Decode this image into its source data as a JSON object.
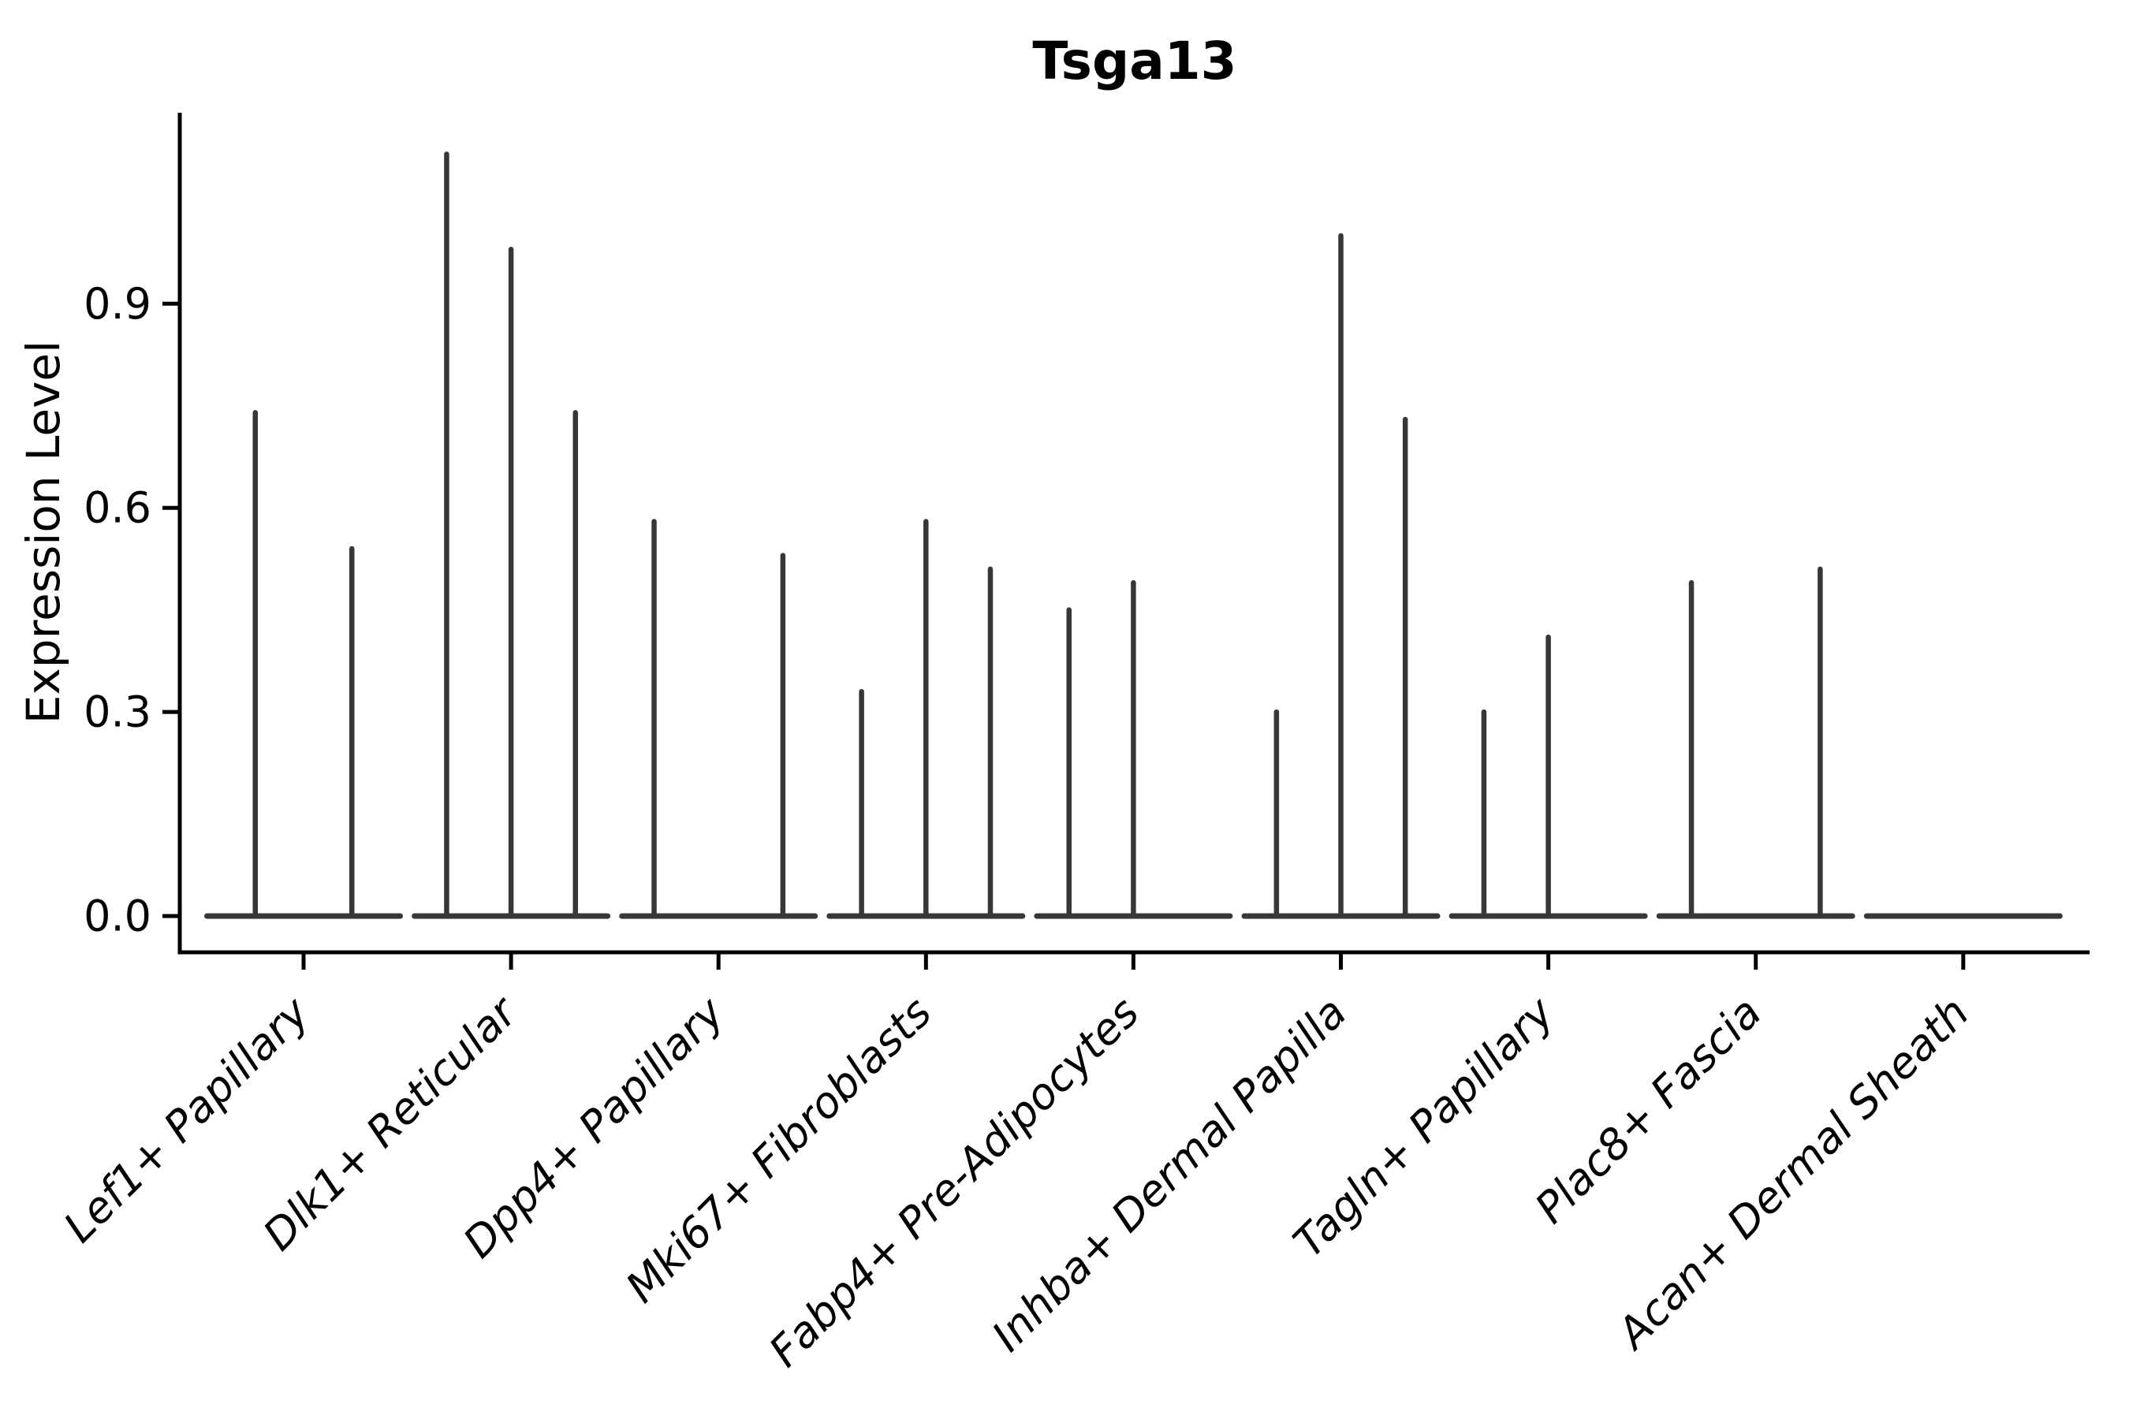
{
  "chart_data": {
    "type": "violin",
    "title": "Tsga13",
    "ylabel": "Expression Level",
    "xlabel": "",
    "ylim": [
      -0.05,
      1.18
    ],
    "yticks": [
      0,
      0.3,
      0.6,
      0.9
    ],
    "ytick_labels": [
      "0.0",
      "0.3",
      "0.6",
      "0.9"
    ],
    "grid": false,
    "legend_position": "none",
    "background": "#ffffff",
    "axis_color": "#000000",
    "violin_color": "#373737",
    "note": "All violins are collapsed flat at expression 0 with a thin density spike up to the max expressing cells; groups are split into 2-3 sub-violins",
    "categories": [
      "Lef1+ Papillary",
      "Dlk1+ Reticular",
      "Dpp4+ Papillary",
      "Mki67+ Fibroblasts",
      "Fabp4+ Pre-Adipocytes",
      "Inhba+ Dermal Papilla",
      "Tagln+ Papillary",
      "Plac8+ Fascia",
      "Acan+ Dermal Sheath"
    ],
    "series": [
      {
        "category": "Lef1+ Papillary",
        "n_slots": 2,
        "violins": [
          {
            "slot": 0,
            "max": 0.74
          },
          {
            "slot": 1,
            "max": 0.54
          }
        ]
      },
      {
        "category": "Dlk1+ Reticular",
        "n_slots": 3,
        "violins": [
          {
            "slot": 0,
            "max": 1.12
          },
          {
            "slot": 1,
            "max": 0.98
          },
          {
            "slot": 2,
            "max": 0.74
          }
        ]
      },
      {
        "category": "Dpp4+ Papillary",
        "n_slots": 3,
        "violins": [
          {
            "slot": 0,
            "max": 0.58
          },
          {
            "slot": 2,
            "max": 0.53
          }
        ]
      },
      {
        "category": "Mki67+ Fibroblasts",
        "n_slots": 3,
        "violins": [
          {
            "slot": 0,
            "max": 0.33
          },
          {
            "slot": 1,
            "max": 0.58
          },
          {
            "slot": 2,
            "max": 0.51
          }
        ]
      },
      {
        "category": "Fabp4+ Pre-Adipocytes",
        "n_slots": 3,
        "violins": [
          {
            "slot": 0,
            "max": 0.45
          },
          {
            "slot": 1,
            "max": 0.49
          }
        ]
      },
      {
        "category": "Inhba+ Dermal Papilla",
        "n_slots": 3,
        "violins": [
          {
            "slot": 0,
            "max": 0.3
          },
          {
            "slot": 1,
            "max": 1.0
          },
          {
            "slot": 2,
            "max": 0.73
          }
        ]
      },
      {
        "category": "Tagln+ Papillary",
        "n_slots": 3,
        "violins": [
          {
            "slot": 0,
            "max": 0.3
          },
          {
            "slot": 1,
            "max": 0.41
          }
        ]
      },
      {
        "category": "Plac8+ Fascia",
        "n_slots": 3,
        "violins": [
          {
            "slot": 0,
            "max": 0.49
          },
          {
            "slot": 2,
            "max": 0.51
          }
        ]
      },
      {
        "category": "Acan+ Dermal Sheath",
        "n_slots": 3,
        "violins": []
      }
    ]
  }
}
